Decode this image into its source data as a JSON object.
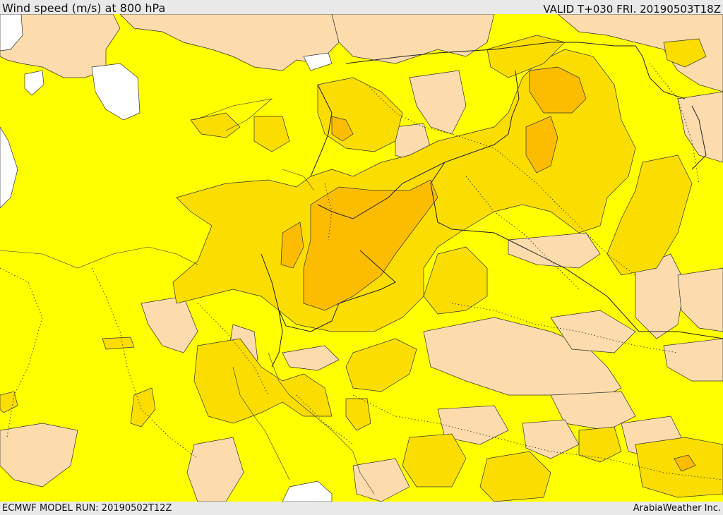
{
  "header": {
    "title": "Wind speed (m/s) at 800 hPa",
    "valid": "VALID T+030 FRI. 20190503T18Z"
  },
  "footer": {
    "model_run": "ECMWF MODEL RUN: 20190502T12Z",
    "credit": "ArabiaWeather Inc."
  },
  "legend_colors": {
    "weak": "#fcdcac",
    "base": "#ffff00",
    "moderate": "#fbde00",
    "strong": "#fcbd00",
    "strongest": "#f2a800",
    "no_data": "#ffffff"
  }
}
